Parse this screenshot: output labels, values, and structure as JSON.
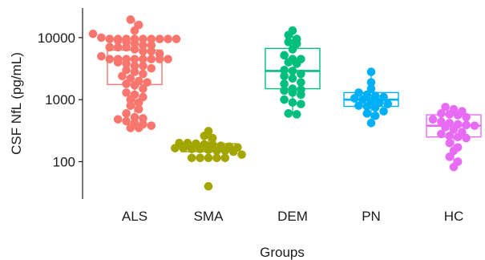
{
  "chart_data": {
    "type": "box-dotplot",
    "title": "",
    "xlabel": "Groups",
    "ylabel": "CSF NfL (pg/mL)",
    "yscale": "log10",
    "ylim": [
      25,
      30000
    ],
    "yticks": [
      100,
      1000,
      10000
    ],
    "ytick_labels": [
      "100",
      "1000",
      "10000"
    ],
    "grid": false,
    "legend": "none",
    "categories": [
      "ALS",
      "SMA",
      "DEM",
      "PN",
      "HC"
    ],
    "series": [
      {
        "category": "ALS",
        "color": "#F8766D",
        "box": {
          "q1": 1750,
          "median": 4500,
          "q3": 6300,
          "whisker_low": 350,
          "whisker_high": 19500
        },
        "points": [
          19500,
          16000,
          13000,
          11500,
          10000,
          9500,
          9500,
          9500,
          9500,
          9500,
          9500,
          9500,
          9500,
          9500,
          9000,
          8500,
          8000,
          7500,
          7500,
          7000,
          7000,
          7000,
          6500,
          6000,
          6000,
          5500,
          5000,
          4500,
          4500,
          4500,
          4500,
          4500,
          4500,
          4500,
          4500,
          4000,
          3800,
          3500,
          3500,
          3200,
          3000,
          2800,
          2600,
          2400,
          2200,
          2000,
          1900,
          1800,
          1700,
          1500,
          1300,
          1200,
          1100,
          1000,
          900,
          800,
          700,
          600,
          520,
          500,
          480,
          450,
          420,
          400,
          380,
          350,
          350
        ]
      },
      {
        "category": "SMA",
        "color": "#A3A500",
        "box": {
          "q1": 145,
          "median": 165,
          "q3": 195,
          "whisker_low": 115,
          "whisker_high": 310
        },
        "points": [
          310,
          260,
          240,
          200,
          200,
          195,
          190,
          190,
          180,
          175,
          170,
          165,
          165,
          160,
          160,
          155,
          150,
          150,
          145,
          130,
          115,
          115,
          115,
          115,
          115,
          40
        ]
      },
      {
        "category": "DEM",
        "color": "#00BF7D",
        "box": {
          "q1": 1500,
          "median": 2900,
          "q3": 6700,
          "whisker_low": 580,
          "whisker_high": 13000
        },
        "points": [
          13000,
          11000,
          9500,
          8500,
          8000,
          6500,
          5200,
          4500,
          4500,
          4000,
          3800,
          3000,
          2900,
          2600,
          2400,
          2200,
          1900,
          1800,
          1500,
          1450,
          1400,
          1300,
          1200,
          1000,
          900,
          850,
          600,
          580
        ]
      },
      {
        "category": "PN",
        "color": "#00B0F6",
        "box": {
          "q1": 780,
          "median": 1000,
          "q3": 1300,
          "whisker_low": 420,
          "whisker_high": 2800
        },
        "points": [
          2800,
          1900,
          1500,
          1300,
          1200,
          1150,
          1100,
          1050,
          1000,
          950,
          900,
          850,
          800,
          780,
          750,
          650,
          600,
          550,
          420
        ]
      },
      {
        "category": "HC",
        "color": "#E76BF3",
        "box": {
          "q1": 250,
          "median": 380,
          "q3": 570,
          "whisker_low": 82,
          "whisker_high": 760
        },
        "points": [
          760,
          700,
          650,
          600,
          580,
          560,
          520,
          480,
          440,
          420,
          400,
          390,
          380,
          360,
          330,
          300,
          280,
          260,
          250,
          240,
          200,
          170,
          150,
          120,
          100,
          82
        ]
      }
    ]
  }
}
